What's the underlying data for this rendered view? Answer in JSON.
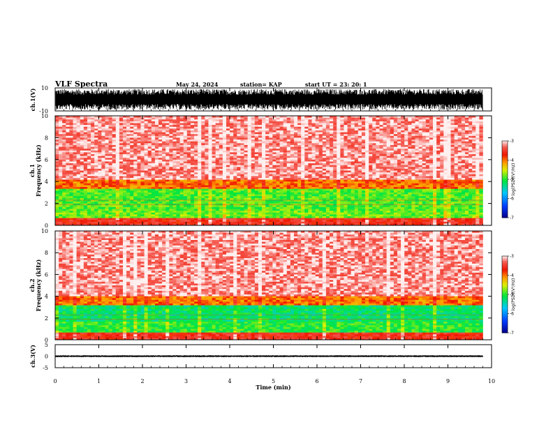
{
  "header": {
    "title": "VLF Spectra",
    "date": "May 24, 2024",
    "station": "station= KAP",
    "start": "start  UT  =   23: 20: 1"
  },
  "chart_data": [
    {
      "type": "line",
      "panel": "ch1-waveform",
      "ylabel": "ch.1(V)",
      "ylim": [
        -10,
        10
      ],
      "yticks": [
        "10",
        "-10"
      ],
      "xlim": [
        0,
        10
      ],
      "note_values": "noise envelope roughly spanning -9 to 9 V",
      "band": [
        -9,
        9
      ],
      "data_end_x": 9.8
    },
    {
      "type": "heatmap",
      "panel": "ch1-spectrogram",
      "ylabel": "ch.1\nFrequency (kHz)",
      "ylim": [
        0,
        10
      ],
      "yticks": [
        "0",
        "2",
        "4",
        "6",
        "8",
        "10"
      ],
      "xlim": [
        0,
        10
      ],
      "data_end_x": 9.8,
      "bands_khz": [
        {
          "from": 0,
          "to": 0.6,
          "level": -3.6
        },
        {
          "from": 0.6,
          "to": 1.4,
          "level": -4.8
        },
        {
          "from": 1.4,
          "to": 3.4,
          "level": -4.9
        },
        {
          "from": 3.4,
          "to": 4.2,
          "level": -4.0
        },
        {
          "from": 4.2,
          "to": 10,
          "level": -3.2
        }
      ],
      "colorbar": {
        "label": "log(PSD)(V²/Hz)",
        "ticks": [
          "-3",
          "-4",
          "-5",
          "-6",
          "-7"
        ],
        "range": [
          -7,
          -3
        ]
      }
    },
    {
      "type": "heatmap",
      "panel": "ch2-spectrogram",
      "ylabel": "ch.2\nFrequency (kHz)",
      "ylim": [
        0,
        10
      ],
      "yticks": [
        "0",
        "2",
        "4",
        "6",
        "8",
        "10"
      ],
      "xlim": [
        0,
        10
      ],
      "data_end_x": 9.8,
      "bands_khz": [
        {
          "from": 0,
          "to": 0.6,
          "level": -3.6
        },
        {
          "from": 0.6,
          "to": 1.6,
          "level": -5.0
        },
        {
          "from": 1.6,
          "to": 3.2,
          "level": -5.2
        },
        {
          "from": 3.2,
          "to": 4.0,
          "level": -4.0
        },
        {
          "from": 4.0,
          "to": 10,
          "level": -3.2
        }
      ],
      "colorbar": {
        "label": "log(PSD)(V²/Hz)",
        "ticks": [
          "-3",
          "-4",
          "-5",
          "-6",
          "-7"
        ],
        "range": [
          -7,
          -3
        ]
      }
    },
    {
      "type": "line",
      "panel": "ch3-waveform",
      "ylabel": "ch.3(V)",
      "ylim": [
        -5,
        5
      ],
      "yticks": [
        "5",
        "0",
        "-5"
      ],
      "xlim": [
        0,
        10
      ],
      "xticks": [
        "0",
        "1",
        "2",
        "3",
        "4",
        "5",
        "6",
        "7",
        "8",
        "9",
        "10"
      ],
      "xlabel": "Time (min)",
      "band": [
        -0.4,
        0.4
      ],
      "data_end_x": 9.8
    }
  ]
}
